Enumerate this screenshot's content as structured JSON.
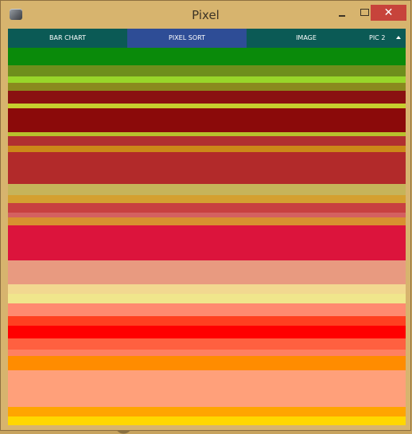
{
  "window": {
    "title": "Pixel"
  },
  "tabs": [
    {
      "label": "BAR CHART",
      "active": false
    },
    {
      "label": "PIXEL SORT",
      "active": true
    },
    {
      "label": "IMAGE",
      "active": false
    },
    {
      "label": "PIC 2",
      "active": false
    }
  ],
  "colors": {
    "tab_default": "#0b5a55",
    "tab_active": "#2e4d96",
    "close_button": "#c7433b"
  },
  "pixel_sort_colors": [
    "#0a8a0a",
    "#6e8f1c",
    "#98d62a",
    "#8a8a1e",
    "#8a1111",
    "#c7cf2e",
    "#8b0a0a",
    "#b8c22c",
    "#b03030",
    "#cc8818",
    "#b22a2a",
    "#c6b45a",
    "#d4a030",
    "#c84040",
    "#d46060",
    "#d89030",
    "#dc143c",
    "#e89a80",
    "#f2d890",
    "#f0e68c",
    "#ff8a70",
    "#ff4020",
    "#ff0000",
    "#ff6040",
    "#ff8060",
    "#ff8c00",
    "#ffa07a",
    "#ffa500",
    "#ffd700",
    "#ffe060",
    "#ffffff",
    "#ffff00",
    "#ffff20",
    "#ffffff"
  ]
}
